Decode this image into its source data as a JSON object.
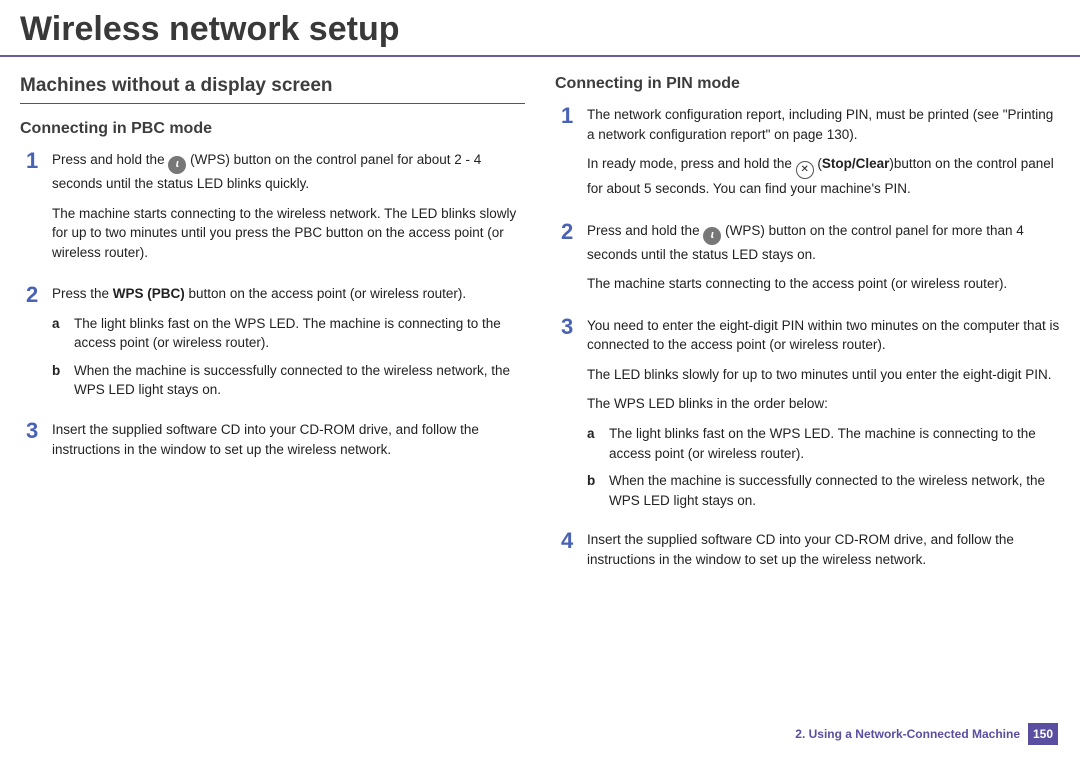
{
  "title": "Wireless network setup",
  "left": {
    "h2": "Machines without a display screen",
    "h3": "Connecting in PBC mode",
    "steps": [
      {
        "num": "1",
        "p1a": "Press and hold the ",
        "p1b": " (WPS) button on the control panel for about 2 - 4 seconds until the status LED blinks quickly.",
        "p2": "The machine starts connecting to the wireless network. The LED blinks slowly for up to two minutes until you press the PBC button on the access point (or wireless router)."
      },
      {
        "num": "2",
        "p1a": "Press the ",
        "p1bold": "WPS (PBC)",
        "p1b": " button on the access point (or wireless router).",
        "subs": [
          {
            "l": "a",
            "t": "The light blinks fast on the WPS LED. The machine is connecting to the access point (or wireless router)."
          },
          {
            "l": "b",
            "t": "When the machine is successfully connected to the wireless network, the WPS LED light stays on."
          }
        ]
      },
      {
        "num": "3",
        "p1": "Insert the supplied software CD into your CD-ROM drive, and follow the instructions in the window to set up the wireless network."
      }
    ]
  },
  "right": {
    "h3": "Connecting in PIN mode",
    "steps": [
      {
        "num": "1",
        "p1": "The network configuration report, including PIN, must be printed (see \"Printing a network configuration report\" on page 130).",
        "p2a": "In ready mode, press and hold the ",
        "p2bold": "Stop/Clear",
        "p2b": ")button on the control panel for about 5 seconds. You can find your machine's PIN."
      },
      {
        "num": "2",
        "p1a": "Press and hold the ",
        "p1b": " (WPS) button on the control panel for more than 4 seconds until the status LED stays on.",
        "p2": "The machine starts connecting to the access point (or wireless router)."
      },
      {
        "num": "3",
        "p1": "You need to enter the eight-digit PIN within two minutes on the computer that is connected to the access point (or wireless router).",
        "p2": "The LED blinks slowly for up to two minutes until you enter the eight-digit PIN.",
        "p3": "The WPS LED blinks in the order below:",
        "subs": [
          {
            "l": "a",
            "t": "The light blinks fast on the WPS LED. The machine is connecting to the access point (or wireless router)."
          },
          {
            "l": "b",
            "t": "When the machine is successfully connected to the wireless network, the WPS LED light stays on."
          }
        ]
      },
      {
        "num": "4",
        "p1": "Insert the supplied software CD into your CD-ROM drive, and follow the instructions in the window to set up the wireless network."
      }
    ]
  },
  "footer": {
    "chapter": "2.  Using a Network-Connected Machine",
    "page": "150"
  },
  "colors": {
    "accent": "#5a4ea0",
    "stepnum": "#4a62b4",
    "rule": "#6b5a9e"
  }
}
